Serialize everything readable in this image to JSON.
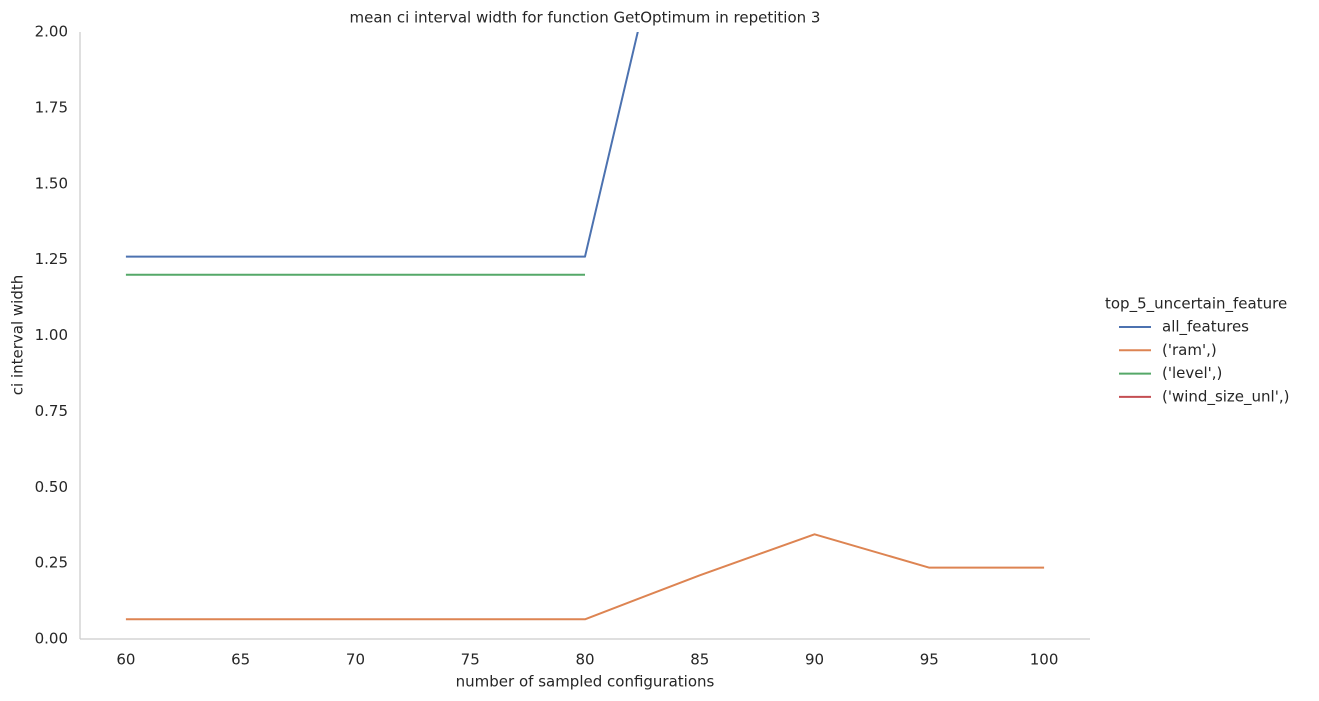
{
  "chart_data": {
    "type": "line",
    "title": "mean ci interval width for function GetOptimum in repetition 3",
    "x_label": "number of sampled configurations",
    "y_label": "ci interval width",
    "legend_title": "top_5_uncertain_feature",
    "legend_position": "right",
    "grid": false,
    "x": [
      60,
      65,
      70,
      75,
      80,
      85,
      90,
      95,
      100
    ],
    "series": [
      {
        "name": "all_features",
        "color": "#4c72b0",
        "values": [
          1.26,
          1.26,
          1.26,
          1.26,
          1.26,
          2.87,
          null,
          null,
          null
        ]
      },
      {
        "name": "('ram',)",
        "color": "#dd8452",
        "values": [
          0.065,
          0.065,
          0.065,
          0.065,
          0.065,
          0.21,
          0.345,
          0.235,
          0.235
        ]
      },
      {
        "name": "('level',)",
        "color": "#55a868",
        "values": [
          1.2,
          1.2,
          1.2,
          1.2,
          1.2,
          null,
          null,
          null,
          null
        ]
      },
      {
        "name": "('wind_size_unl',)",
        "color": "#c44e52",
        "values": [
          null,
          null,
          null,
          null,
          null,
          null,
          null,
          null,
          null
        ]
      }
    ],
    "xlim": [
      58,
      102
    ],
    "xticks": [
      60,
      65,
      70,
      75,
      80,
      85,
      90,
      95,
      100
    ],
    "ylim": [
      0,
      2
    ],
    "yticks": [
      {
        "value": 0,
        "label": "0.00"
      },
      {
        "value": 0.25,
        "label": "0.25"
      },
      {
        "value": 0.5,
        "label": "0.50"
      },
      {
        "value": 0.75,
        "label": "0.75"
      },
      {
        "value": 1,
        "label": "1.00"
      },
      {
        "value": 1.25,
        "label": "1.25"
      },
      {
        "value": 1.5,
        "label": "1.50"
      },
      {
        "value": 1.75,
        "label": "1.75"
      },
      {
        "value": 2,
        "label": "2.00"
      }
    ]
  }
}
